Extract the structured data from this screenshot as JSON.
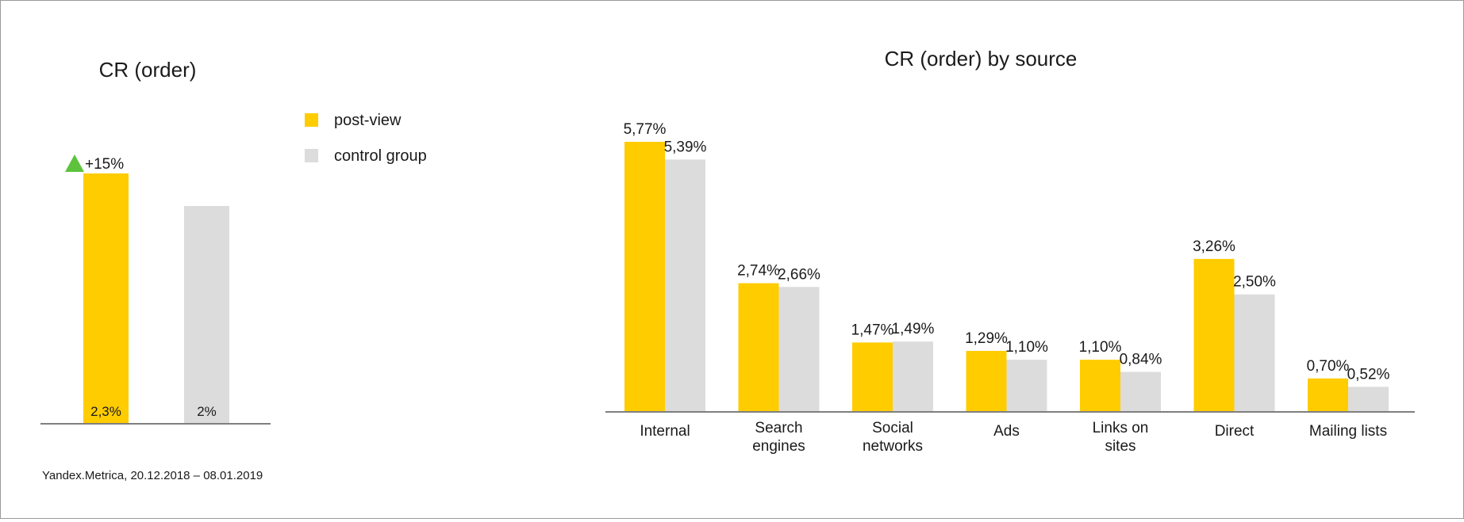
{
  "colors": {
    "post_view": "#ffcc00",
    "control": "#dcdcdc",
    "up_arrow": "#5dc23c",
    "axis": "#555555"
  },
  "chart_data": [
    {
      "type": "bar",
      "title": "CR (order)",
      "categories": [
        "post-view",
        "control group"
      ],
      "values": [
        2.3,
        2.0
      ],
      "value_labels": [
        "2,3%",
        "2%"
      ],
      "annotation": "+15%",
      "annotation_icon": "up-triangle-icon",
      "legend": [
        {
          "name": "post-view",
          "color": "#ffcc00"
        },
        {
          "name": "control group",
          "color": "#dcdcdc"
        }
      ],
      "legend_position": "right",
      "ylim": [
        0,
        2.65
      ],
      "grid": false,
      "source": "Yandex.Metrica, 20.12.2018 – 08.01.2019"
    },
    {
      "type": "bar",
      "title": "CR (order) by source",
      "categories": [
        [
          "Internal"
        ],
        [
          "Search",
          "engines"
        ],
        [
          "Social",
          "networks"
        ],
        [
          "Ads"
        ],
        [
          "Links on",
          "sites"
        ],
        [
          "Direct"
        ],
        [
          "Mailing lists"
        ]
      ],
      "series": [
        {
          "name": "post-view",
          "values": [
            5.77,
            2.74,
            1.47,
            1.29,
            1.1,
            3.26,
            0.7
          ],
          "labels": [
            "5,77%",
            "2,74%",
            "1,47%",
            "1,29%",
            "1,10%",
            "3,26%",
            "0,70%"
          ]
        },
        {
          "name": "control group",
          "values": [
            5.39,
            2.66,
            1.49,
            1.1,
            0.84,
            2.5,
            0.52
          ],
          "labels": [
            "5,39%",
            "2,66%",
            "1,49%",
            "1,10%",
            "0,84%",
            "2,50%",
            "0,52%"
          ]
        }
      ],
      "ylim": [
        0,
        6.8
      ],
      "grid": false
    }
  ]
}
